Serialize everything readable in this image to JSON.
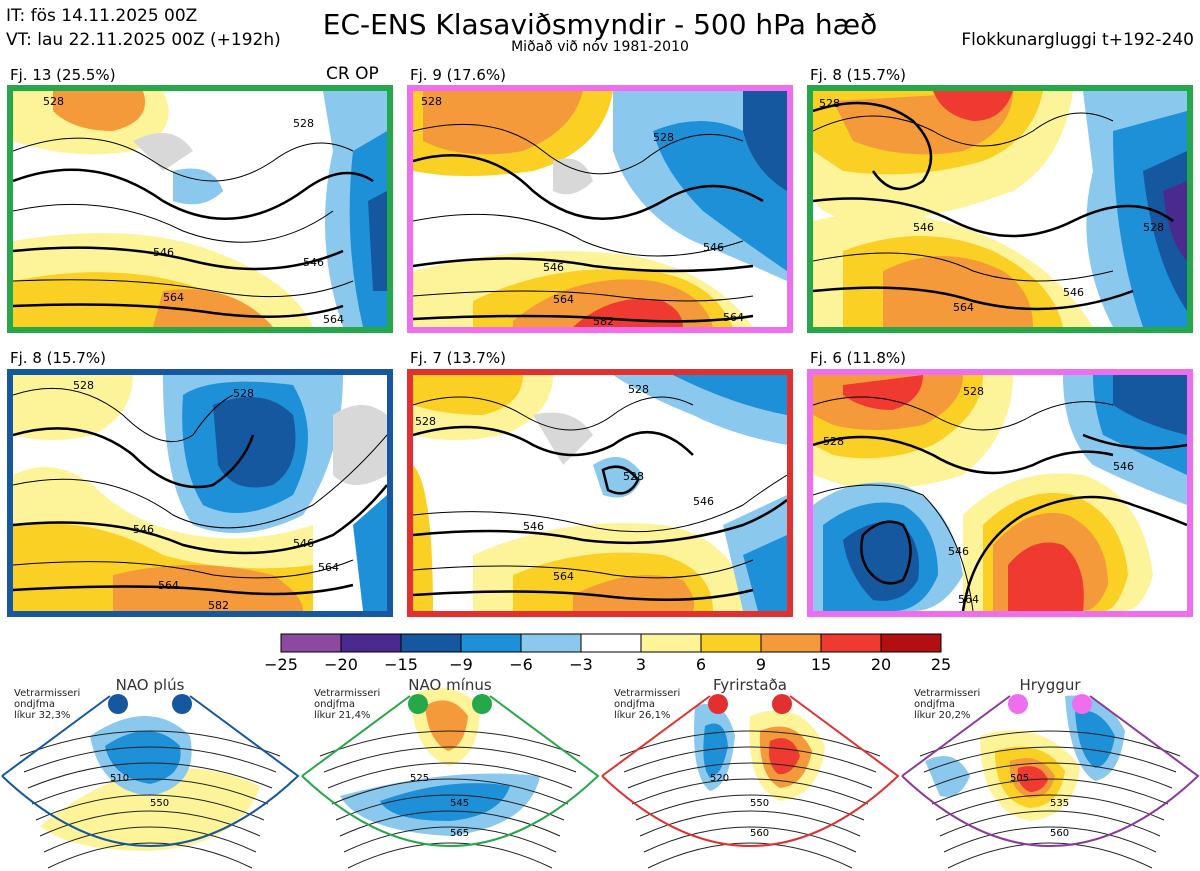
{
  "header": {
    "it_line": "IT: fös 14.11.2025 00Z",
    "vt_line": "VT: lau 22.11.2025 00Z  (+192h)",
    "title": "EC-ENS Klasaviðsmyndir - 500 hPa hæð",
    "subtitle": "Miðað við nóv 1981-2010",
    "window": "Flokkunargluggi t+192-240"
  },
  "clusters": [
    {
      "label": "Fj. 13 (25.5%)",
      "color": "#26a84a",
      "extra": "CR OP",
      "contours": [
        "528",
        "528",
        "546",
        "546",
        "564",
        "564"
      ]
    },
    {
      "label": "Fj. 9 (17.6%)",
      "color": "#ee6eee",
      "extra": "",
      "contours": [
        "528",
        "528",
        "546",
        "546",
        "564",
        "564",
        "582"
      ]
    },
    {
      "label": "Fj. 8 (15.7%)",
      "color": "#26a84a",
      "extra": "",
      "contours": [
        "528",
        "528",
        "546",
        "546",
        "564"
      ]
    },
    {
      "label": "Fj. 8 (15.7%)",
      "color": "#1558a0",
      "extra": "",
      "contours": [
        "528",
        "528",
        "546",
        "546",
        "564",
        "564",
        "582"
      ]
    },
    {
      "label": "Fj. 7 (13.7%)",
      "color": "#e23030",
      "extra": "",
      "contours": [
        "528",
        "528",
        "528",
        "546",
        "546",
        "564"
      ]
    },
    {
      "label": "Fj. 6 (11.8%)",
      "color": "#ee6eee",
      "extra": "",
      "contours": [
        "528",
        "528",
        "546",
        "546",
        "564"
      ]
    }
  ],
  "colorbar": {
    "ticks": [
      "−25",
      "−20",
      "−15",
      "−9",
      "−6",
      "−3",
      "3",
      "6",
      "9",
      "15",
      "20",
      "25"
    ],
    "colors": [
      "#8b4aa0",
      "#4a2a8f",
      "#1558a0",
      "#1e90d8",
      "#8ac8ee",
      "#ffffff",
      "#fdf49a",
      "#fbd024",
      "#f49a3a",
      "#ee3a30",
      "#b30f10"
    ]
  },
  "regimes": [
    {
      "name": "NAO plús",
      "color": "#1558a0",
      "dot": "#1558a0",
      "note": [
        "Vetrarmisseri",
        "ondjfma",
        "líkur 32,3%"
      ],
      "contours": [
        "510",
        "550"
      ]
    },
    {
      "name": "NAO mínus",
      "color": "#26a84a",
      "dot": "#26a84a",
      "note": [
        "Vetrarmisseri",
        "ondjfma",
        "líkur 21,4%"
      ],
      "contours": [
        "525",
        "545",
        "565"
      ]
    },
    {
      "name": "Fyrirstaða",
      "color": "#e23030",
      "dot": "#e23030",
      "note": [
        "Vetrarmisseri",
        "ondjfma",
        "líkur 26,1%"
      ],
      "contours": [
        "520",
        "550",
        "560"
      ]
    },
    {
      "name": "Hryggur",
      "color": "#8b3a9c",
      "dot": "#ee6eee",
      "note": [
        "Vetrarmisseri",
        "ondjfma",
        "líkur 20,2%"
      ],
      "contours": [
        "505",
        "535",
        "560"
      ]
    }
  ]
}
